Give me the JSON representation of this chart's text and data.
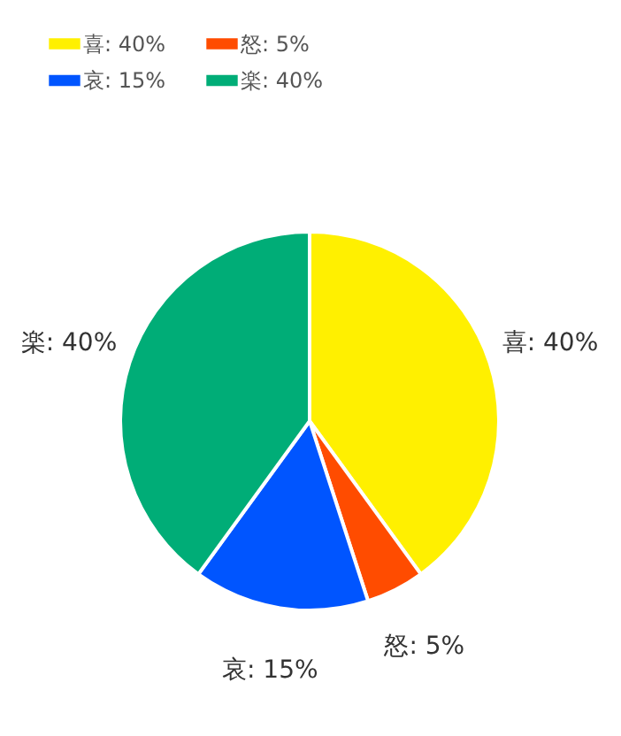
{
  "chart_data": {
    "type": "pie",
    "categories": [
      "喜",
      "怒",
      "哀",
      "楽"
    ],
    "values": [
      40,
      5,
      15,
      40
    ],
    "value_labels": [
      "40%",
      "5%",
      "15%",
      "40%"
    ],
    "colors": [
      "#fff000",
      "#ff4c00",
      "#0055ff",
      "#00ad77"
    ],
    "legend": "top left"
  }
}
